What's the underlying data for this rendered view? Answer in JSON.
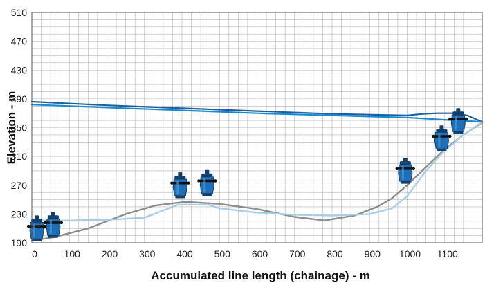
{
  "chart_data": {
    "type": "line",
    "title": "",
    "xlabel": "Accumulated line length (chainage) - m",
    "ylabel": "Elevation - m",
    "xlim": [
      0,
      1200
    ],
    "ylim": [
      190,
      510
    ],
    "x_ticks": [
      0,
      100,
      200,
      300,
      400,
      500,
      600,
      700,
      800,
      900,
      1000,
      1100
    ],
    "y_ticks": [
      190,
      230,
      270,
      310,
      350,
      390,
      430,
      470,
      510
    ],
    "grid": true,
    "legend": "none",
    "colors": {
      "profile": "#8c8c8c",
      "light_line": "#a9cfe8",
      "dark_line_1": "#1f5f9e",
      "dark_line_2": "#1a8ad0",
      "valve_body": "#1f6eb8",
      "valve_dark": "#143f6b",
      "grid": "#b4b4b4"
    },
    "series": [
      {
        "x": [
          0,
          60,
          150,
          250,
          330,
          410,
          500,
          600,
          700,
          780,
          860,
          920,
          960,
          1000,
          1050,
          1100,
          1150,
          1200
        ],
        "y": [
          193,
          198,
          210,
          230,
          242,
          247,
          244,
          237,
          226,
          221,
          228,
          240,
          252,
          270,
          295,
          320,
          340,
          357
        ]
      },
      {
        "x": [
          0,
          30,
          100,
          200,
          300,
          350,
          390,
          430,
          470,
          500,
          600,
          700,
          800,
          900,
          960,
          1000,
          1050,
          1100,
          1150,
          1200
        ],
        "y": [
          220,
          221,
          221,
          222,
          225,
          235,
          243,
          243,
          243,
          238,
          232,
          229,
          228,
          230,
          238,
          255,
          290,
          318,
          340,
          358
        ]
      },
      {
        "x": [
          0,
          200,
          400,
          600,
          800,
          1000,
          1040,
          1080,
          1120,
          1160,
          1200
        ],
        "y": [
          386,
          381,
          377,
          373,
          369,
          367,
          369,
          370,
          370,
          367,
          358
        ]
      },
      {
        "x": [
          0,
          200,
          400,
          600,
          800,
          1000,
          1100,
          1200
        ],
        "y": [
          382,
          378,
          374,
          370,
          367,
          364,
          361,
          358
        ]
      }
    ],
    "valves": [
      {
        "x": 13,
        "y": 205
      },
      {
        "x": 57,
        "y": 210
      },
      {
        "x": 395,
        "y": 265
      },
      {
        "x": 467,
        "y": 268
      },
      {
        "x": 995,
        "y": 285
      },
      {
        "x": 1092,
        "y": 330
      },
      {
        "x": 1136,
        "y": 354
      }
    ]
  }
}
